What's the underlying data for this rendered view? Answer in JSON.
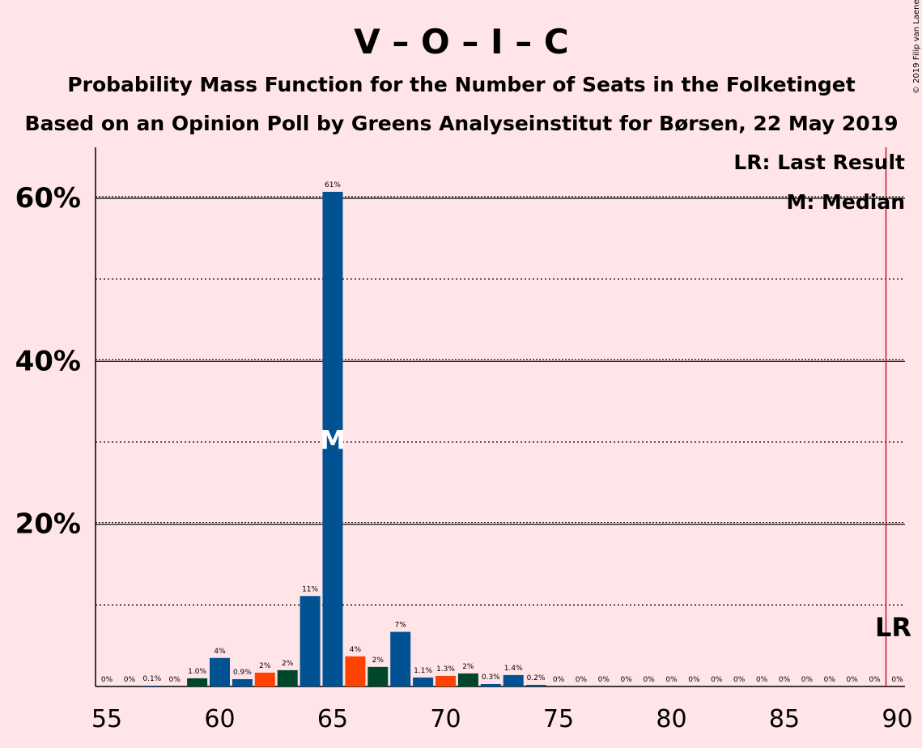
{
  "chart_data": {
    "type": "bar",
    "title": "V – O – I – C",
    "subtitle1": "Probability Mass Function for the Number of Seats in the Folketinget",
    "subtitle2": "Based on an Opinion Poll by Greens Analyseinstitut for Børsen, 22 May 2019",
    "credit": "© 2019 Filip van Laenen",
    "legend": {
      "lr": "LR: Last Result",
      "median": "M: Median",
      "position": "top-right"
    },
    "x_ticks": [
      "55",
      "60",
      "65",
      "70",
      "75",
      "80",
      "85",
      "90"
    ],
    "y_ticks": [
      "20%",
      "40%",
      "60%"
    ],
    "xlim": [
      55,
      90
    ],
    "ylim": [
      0,
      66
    ],
    "gridlines": {
      "solid": [
        20,
        40,
        60
      ],
      "dotted": [
        10,
        30,
        50
      ]
    },
    "last_result_seat": 90,
    "last_result_label": "LR",
    "median_seat": 65,
    "median_label": "M",
    "colors": {
      "background": "#FFE4E8",
      "blue": "#005293",
      "red": "#FF4200",
      "green": "#00462A",
      "lr_line": "#C8102E",
      "text": "#1a1a1a"
    },
    "bars": [
      {
        "seat": 55,
        "value": 0,
        "label": "0%",
        "color": "blue"
      },
      {
        "seat": 56,
        "value": 0,
        "label": "0%",
        "color": "blue"
      },
      {
        "seat": 57,
        "value": 0.1,
        "label": "0.1%",
        "color": "blue"
      },
      {
        "seat": 58,
        "value": 0,
        "label": "0%",
        "color": "blue"
      },
      {
        "seat": 59,
        "value": 1.0,
        "label": "1.0%",
        "color": "green"
      },
      {
        "seat": 60,
        "value": 3.5,
        "label": "4%",
        "color": "blue"
      },
      {
        "seat": 61,
        "value": 0.9,
        "label": "0.9%",
        "color": "blue"
      },
      {
        "seat": 62,
        "value": 1.7,
        "label": "2%",
        "color": "red"
      },
      {
        "seat": 63,
        "value": 2.0,
        "label": "2%",
        "color": "green"
      },
      {
        "seat": 64,
        "value": 11.1,
        "label": "11%",
        "color": "blue"
      },
      {
        "seat": 65,
        "value": 60.7,
        "label": "61%",
        "color": "blue"
      },
      {
        "seat": 66,
        "value": 3.7,
        "label": "4%",
        "color": "red"
      },
      {
        "seat": 67,
        "value": 2.4,
        "label": "2%",
        "color": "green"
      },
      {
        "seat": 68,
        "value": 6.7,
        "label": "7%",
        "color": "blue"
      },
      {
        "seat": 69,
        "value": 1.1,
        "label": "1.1%",
        "color": "blue"
      },
      {
        "seat": 70,
        "value": 1.3,
        "label": "1.3%",
        "color": "red"
      },
      {
        "seat": 71,
        "value": 1.6,
        "label": "2%",
        "color": "green"
      },
      {
        "seat": 72,
        "value": 0.3,
        "label": "0.3%",
        "color": "blue"
      },
      {
        "seat": 73,
        "value": 1.4,
        "label": "1.4%",
        "color": "blue"
      },
      {
        "seat": 74,
        "value": 0.2,
        "label": "0.2%",
        "color": "blue"
      },
      {
        "seat": 75,
        "value": 0,
        "label": "0%",
        "color": "blue"
      },
      {
        "seat": 76,
        "value": 0,
        "label": "0%",
        "color": "blue"
      },
      {
        "seat": 77,
        "value": 0,
        "label": "0%",
        "color": "blue"
      },
      {
        "seat": 78,
        "value": 0,
        "label": "0%",
        "color": "blue"
      },
      {
        "seat": 79,
        "value": 0,
        "label": "0%",
        "color": "blue"
      },
      {
        "seat": 80,
        "value": 0,
        "label": "0%",
        "color": "blue"
      },
      {
        "seat": 81,
        "value": 0,
        "label": "0%",
        "color": "blue"
      },
      {
        "seat": 82,
        "value": 0,
        "label": "0%",
        "color": "blue"
      },
      {
        "seat": 83,
        "value": 0,
        "label": "0%",
        "color": "blue"
      },
      {
        "seat": 84,
        "value": 0,
        "label": "0%",
        "color": "blue"
      },
      {
        "seat": 85,
        "value": 0,
        "label": "0%",
        "color": "blue"
      },
      {
        "seat": 86,
        "value": 0,
        "label": "0%",
        "color": "blue"
      },
      {
        "seat": 87,
        "value": 0,
        "label": "0%",
        "color": "blue"
      },
      {
        "seat": 88,
        "value": 0,
        "label": "0%",
        "color": "blue"
      },
      {
        "seat": 89,
        "value": 0,
        "label": "0%",
        "color": "blue"
      },
      {
        "seat": 90,
        "value": 0,
        "label": "0%",
        "color": "blue"
      }
    ]
  }
}
